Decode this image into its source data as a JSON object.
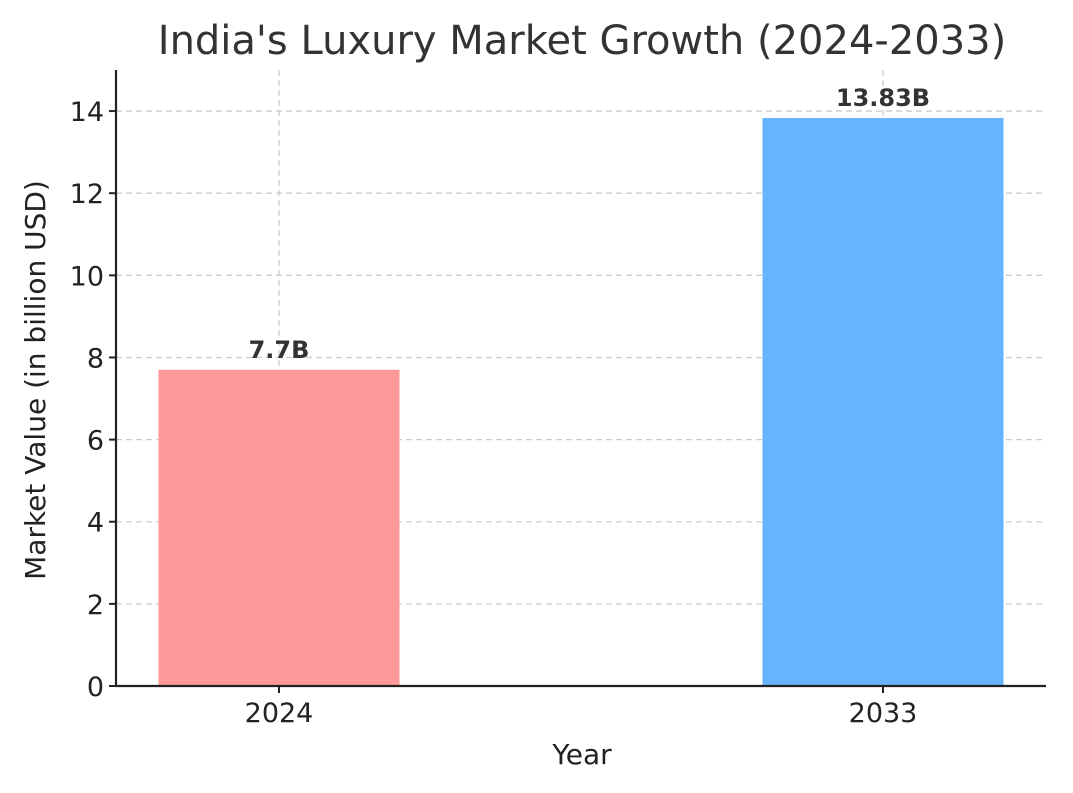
{
  "chart_data": {
    "type": "bar",
    "title": "India's Luxury Market Growth (2024-2033)",
    "xlabel": "Year",
    "ylabel": "Market Value (in billion USD)",
    "categories": [
      "2024",
      "2033"
    ],
    "values": [
      7.7,
      13.83
    ],
    "data_labels": [
      "7.7B",
      "13.83B"
    ],
    "colors": [
      "#ff9999",
      "#66b3ff"
    ],
    "ylim": [
      0,
      15
    ],
    "yticks": [
      0,
      2,
      4,
      6,
      8,
      10,
      12,
      14
    ],
    "ytick_labels": [
      "0",
      "2",
      "4",
      "6",
      "8",
      "10",
      "12",
      "14"
    ],
    "grid": true,
    "legend": "none"
  }
}
